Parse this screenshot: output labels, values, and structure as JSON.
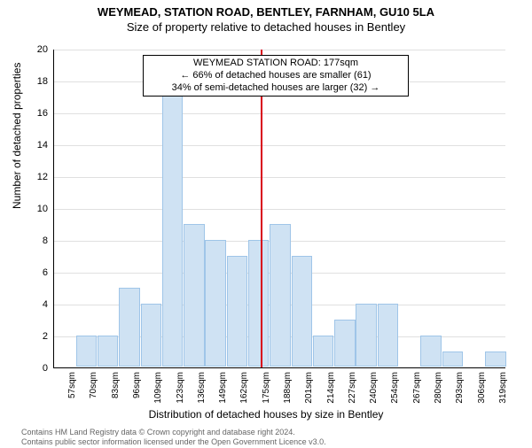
{
  "titles": {
    "line1": "WEYMEAD, STATION ROAD, BENTLEY, FARNHAM, GU10 5LA",
    "line2": "Size of property relative to detached houses in Bentley"
  },
  "ylabel": "Number of detached properties",
  "xlabel": "Distribution of detached houses by size in Bentley",
  "annot": {
    "line1": "WEYMEAD STATION ROAD: 177sqm",
    "line2": "← 66% of detached houses are smaller (61)",
    "line3": "34% of semi-detached houses are larger (32) →"
  },
  "footer": {
    "line1": "Contains HM Land Registry data © Crown copyright and database right 2024.",
    "line2": "Contains public sector information licensed under the Open Government Licence v3.0."
  },
  "chart": {
    "type": "bar",
    "ylim": [
      0,
      20
    ],
    "ytick_step": 2,
    "bar_fill": "#cfe2f3",
    "bar_stroke": "#9fc5e8",
    "background_color": "#ffffff",
    "grid_color": "#e0e0e0",
    "reference_line": {
      "x_index": 9.6,
      "color": "#d9001b"
    },
    "categories": [
      "57sqm",
      "70sqm",
      "83sqm",
      "96sqm",
      "109sqm",
      "123sqm",
      "136sqm",
      "149sqm",
      "162sqm",
      "175sqm",
      "188sqm",
      "201sqm",
      "214sqm",
      "227sqm",
      "240sqm",
      "254sqm",
      "267sqm",
      "280sqm",
      "293sqm",
      "306sqm",
      "319sqm"
    ],
    "values": [
      0,
      2,
      2,
      5,
      4,
      18,
      9,
      8,
      7,
      8,
      9,
      7,
      2,
      3,
      4,
      4,
      0,
      2,
      1,
      0,
      1
    ]
  }
}
